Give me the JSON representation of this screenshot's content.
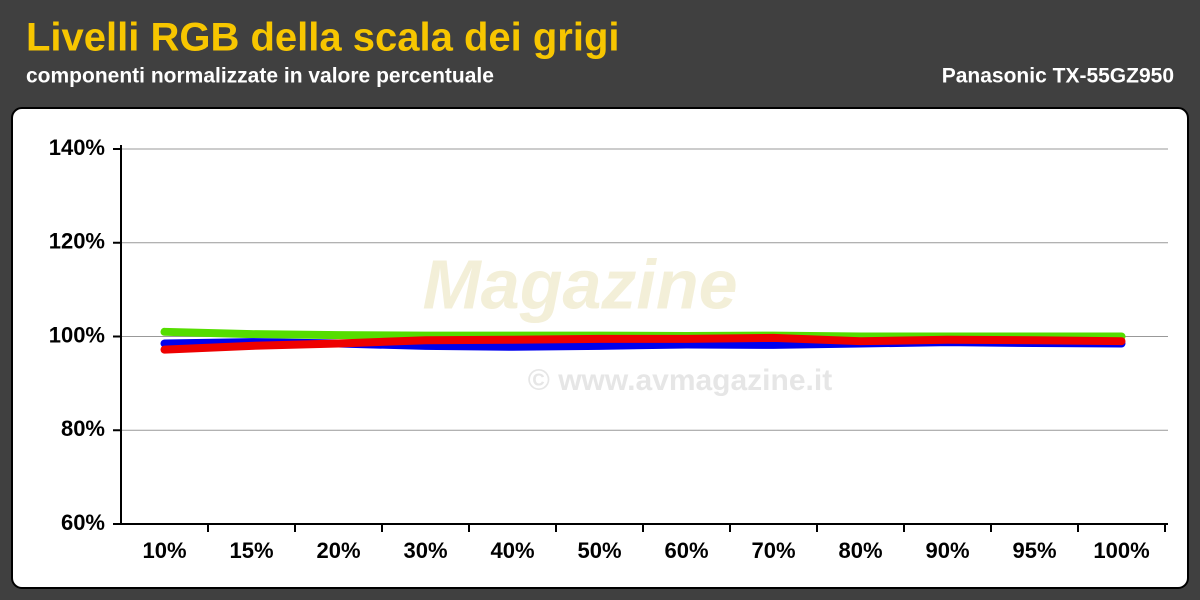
{
  "chart_data": {
    "type": "line",
    "title": "Livelli RGB della scala dei grigi",
    "subtitle": "componenti normalizzate in valore percentuale",
    "device": "Panasonic TX-55GZ950",
    "watermark": [
      "Magazine",
      "© www.avmagazine.it"
    ],
    "categories": [
      "10%",
      "15%",
      "20%",
      "30%",
      "40%",
      "50%",
      "60%",
      "70%",
      "80%",
      "90%",
      "95%",
      "100%"
    ],
    "series": [
      {
        "color": "#55dd00",
        "values": [
          101,
          100.5,
          100.3,
          100.2,
          100.2,
          100.2,
          100.1,
          100.2,
          100,
          100,
          100,
          100
        ]
      },
      {
        "color": "#0000ee",
        "values": [
          98.5,
          98.8,
          98.5,
          98,
          97.8,
          98,
          98.3,
          98.2,
          98.5,
          98.8,
          98.6,
          98.5
        ]
      },
      {
        "color": "#ee0000",
        "values": [
          97.2,
          98,
          98.5,
          99.2,
          99.3,
          99.5,
          99.5,
          99.7,
          99,
          99.3,
          99.2,
          99
        ]
      }
    ],
    "ylim": [
      60,
      140
    ],
    "yticks": [
      {
        "value": 60,
        "label": "60%"
      },
      {
        "value": 80,
        "label": "80%"
      },
      {
        "value": 100,
        "label": "100%"
      },
      {
        "value": 120,
        "label": "120%"
      },
      {
        "value": 140,
        "label": "140%"
      }
    ],
    "grid": true
  }
}
